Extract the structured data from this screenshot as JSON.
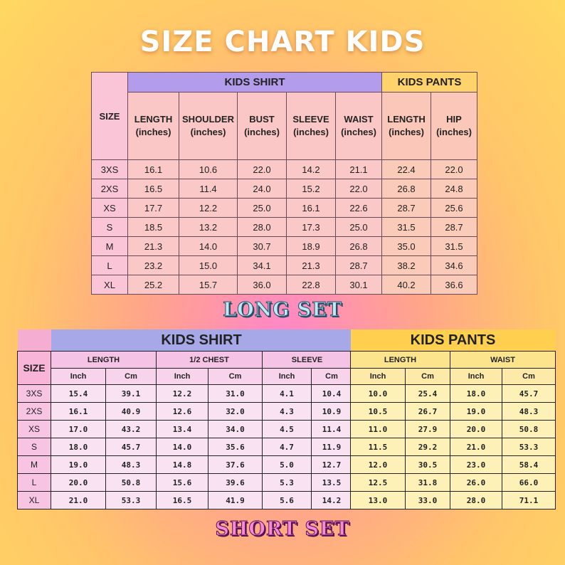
{
  "title": "SIZE CHART KIDS",
  "long_set": {
    "label": "LONG SET",
    "size_header": "SIZE",
    "shirt_group": "KIDS SHIRT",
    "pants_group": "KIDS PANTS",
    "shirt_columns": [
      {
        "name": "LENGTH",
        "unit": "(inches)"
      },
      {
        "name": "SHOULDER",
        "unit": "(inches)"
      },
      {
        "name": "BUST",
        "unit": "(inches)"
      },
      {
        "name": "SLEEVE",
        "unit": "(inches)"
      },
      {
        "name": "WAIST",
        "unit": "(inches)"
      }
    ],
    "pants_columns": [
      {
        "name": "LENGTH",
        "unit": "(inches)"
      },
      {
        "name": "HIP",
        "unit": "(inches)"
      }
    ],
    "rows": [
      [
        "3XS",
        "16.1",
        "10.6",
        "22.0",
        "14.2",
        "21.1",
        "22.4",
        "22.0"
      ],
      [
        "2XS",
        "16.5",
        "11.4",
        "24.0",
        "15.2",
        "22.0",
        "26.8",
        "24.8"
      ],
      [
        "XS",
        "17.7",
        "12.2",
        "25.0",
        "16.1",
        "22.6",
        "28.7",
        "25.6"
      ],
      [
        "S",
        "18.5",
        "13.2",
        "28.0",
        "17.3",
        "25.0",
        "31.5",
        "28.7"
      ],
      [
        "M",
        "21.3",
        "14.0",
        "30.7",
        "18.9",
        "26.8",
        "35.0",
        "31.5"
      ],
      [
        "L",
        "23.2",
        "15.0",
        "34.1",
        "21.3",
        "28.7",
        "38.2",
        "34.6"
      ],
      [
        "XL",
        "25.2",
        "15.7",
        "36.0",
        "22.8",
        "30.1",
        "40.2",
        "36.6"
      ]
    ]
  },
  "short_set": {
    "label": "SHORT SET",
    "size_header": "SIZE",
    "shirt_group": "KIDS SHIRT",
    "pants_group": "KIDS PANTS",
    "shirt_subgroups": [
      "LENGTH",
      "1/2 CHEST",
      "SLEEVE"
    ],
    "pants_subgroups": [
      "LENGTH",
      "WAIST"
    ],
    "units": [
      "Inch",
      "Cm"
    ],
    "sizes": [
      "3XS",
      "2XS",
      "XS",
      "S",
      "M",
      "L",
      "XL"
    ],
    "shirt_rows": [
      [
        "15.4",
        "39.1",
        "12.2",
        "31.0",
        "4.1",
        "10.4"
      ],
      [
        "16.1",
        "40.9",
        "12.6",
        "32.0",
        "4.3",
        "10.9"
      ],
      [
        "17.0",
        "43.2",
        "13.4",
        "34.0",
        "4.5",
        "11.4"
      ],
      [
        "18.0",
        "45.7",
        "14.0",
        "35.6",
        "4.7",
        "11.9"
      ],
      [
        "19.0",
        "48.3",
        "14.8",
        "37.6",
        "5.0",
        "12.7"
      ],
      [
        "20.0",
        "50.8",
        "15.6",
        "39.6",
        "5.3",
        "13.5"
      ],
      [
        "21.0",
        "53.3",
        "16.5",
        "41.9",
        "5.6",
        "14.2"
      ]
    ],
    "pants_rows": [
      [
        "10.0",
        "25.4",
        "18.0",
        "45.7"
      ],
      [
        "10.5",
        "26.7",
        "19.0",
        "48.3"
      ],
      [
        "11.0",
        "27.9",
        "20.0",
        "50.8"
      ],
      [
        "11.5",
        "29.2",
        "21.0",
        "53.3"
      ],
      [
        "12.0",
        "30.5",
        "23.0",
        "58.4"
      ],
      [
        "12.5",
        "31.8",
        "26.0",
        "66.0"
      ],
      [
        "13.0",
        "33.0",
        "28.0",
        "71.1"
      ]
    ]
  }
}
